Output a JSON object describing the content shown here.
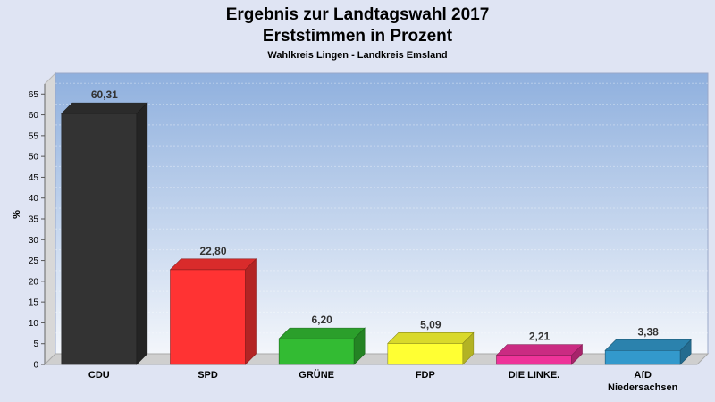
{
  "chart_data": {
    "type": "bar",
    "title": "Ergebnis zur Landtagswahl 2017",
    "title_line2": "Erststimmen in Prozent",
    "subtitle": "Wahlkreis Lingen - Landkreis Emsland",
    "ylabel": "%",
    "xlabel": "",
    "ylim": [
      0,
      70
    ],
    "yticks": [
      0,
      5,
      10,
      15,
      20,
      25,
      30,
      35,
      40,
      45,
      50,
      55,
      60,
      65
    ],
    "grid": true,
    "legend": "none",
    "categories": [
      "CDU",
      "SPD",
      "GRÜNE",
      "FDP",
      "DIE LINKE.",
      "AfD Niedersachsen"
    ],
    "category_lines": [
      [
        "CDU"
      ],
      [
        "SPD"
      ],
      [
        "GRÜNE"
      ],
      [
        "FDP"
      ],
      [
        "DIE LINKE."
      ],
      [
        "AfD",
        "Niedersachsen"
      ]
    ],
    "values": [
      60.31,
      22.8,
      6.2,
      5.09,
      2.21,
      3.38
    ],
    "value_labels": [
      "60,31",
      "22,80",
      "6,20",
      "5,09",
      "2,21",
      "3,38"
    ],
    "colors": [
      "#333333",
      "#ff3333",
      "#33bb33",
      "#ffff33",
      "#ee3399",
      "#3399cc"
    ],
    "background_color": "#dfe4f3",
    "plot_gradient": [
      "#8fb0de",
      "#f3f6fb"
    ]
  }
}
